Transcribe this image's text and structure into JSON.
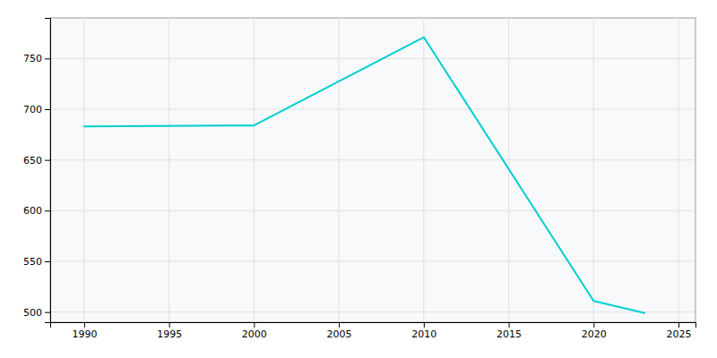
{
  "chart_data": {
    "type": "line",
    "x": [
      1990,
      2000,
      2010,
      2020,
      2022,
      2023
    ],
    "values": [
      683,
      684,
      771,
      511,
      503,
      499
    ],
    "color": "#00CED1",
    "xlim": [
      1988,
      2026
    ],
    "ylim": [
      490,
      790
    ],
    "xticks": [
      1990,
      1995,
      2000,
      2005,
      2010,
      2015,
      2020,
      2025
    ],
    "yticks": [
      500,
      550,
      600,
      650,
      700,
      750
    ],
    "grid": true
  }
}
